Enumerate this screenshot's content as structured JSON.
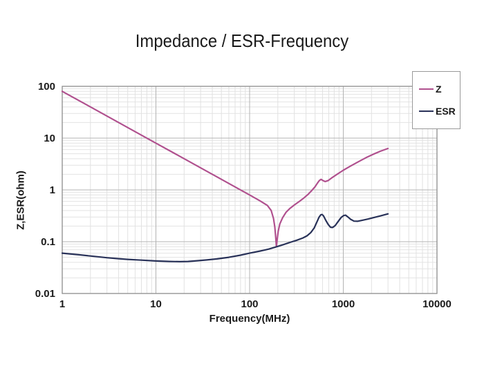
{
  "title": "Impedance / ESR-Frequency",
  "colors": {
    "z_line": "#b0508e",
    "esr_line": "#283158",
    "grid_major": "#b3b3b3",
    "grid_minor": "#e2e2e2",
    "plot_border": "#8c8c8c",
    "text": "#1a1a1a",
    "legend_border": "#999999",
    "background": "#ffffff"
  },
  "chart_data": {
    "type": "line",
    "title": "Impedance / ESR-Frequency",
    "grid": {
      "major": true,
      "minor": true
    },
    "legend_position": "top-right-outside",
    "x_axis": {
      "label": "Frequency(MHz)",
      "scale": "log",
      "min": 1,
      "max": 10000,
      "ticks": [
        "1",
        "10",
        "100",
        "1000",
        "10000"
      ]
    },
    "y_axis": {
      "label": "Z,ESR(ohm)",
      "scale": "log",
      "min": 0.01,
      "max": 100,
      "ticks": [
        "100",
        "10",
        "1",
        "0.1",
        "0.01"
      ]
    },
    "series": [
      {
        "name": "Z",
        "color": "#b0508e",
        "points": [
          [
            1,
            80
          ],
          [
            2,
            40
          ],
          [
            4,
            20
          ],
          [
            7,
            11.4
          ],
          [
            10,
            8
          ],
          [
            20,
            4
          ],
          [
            40,
            2
          ],
          [
            70,
            1.14
          ],
          [
            100,
            0.8
          ],
          [
            130,
            0.61
          ],
          [
            155,
            0.5
          ],
          [
            170,
            0.4
          ],
          [
            180,
            0.28
          ],
          [
            186,
            0.19
          ],
          [
            190,
            0.12
          ],
          [
            193,
            0.082
          ],
          [
            197,
            0.11
          ],
          [
            202,
            0.16
          ],
          [
            210,
            0.22
          ],
          [
            225,
            0.29
          ],
          [
            245,
            0.37
          ],
          [
            270,
            0.44
          ],
          [
            300,
            0.51
          ],
          [
            340,
            0.6
          ],
          [
            380,
            0.7
          ],
          [
            420,
            0.82
          ],
          [
            460,
            0.97
          ],
          [
            500,
            1.15
          ],
          [
            530,
            1.35
          ],
          [
            555,
            1.52
          ],
          [
            580,
            1.6
          ],
          [
            605,
            1.52
          ],
          [
            640,
            1.45
          ],
          [
            690,
            1.52
          ],
          [
            750,
            1.7
          ],
          [
            850,
            1.98
          ],
          [
            1000,
            2.4
          ],
          [
            1200,
            2.9
          ],
          [
            1450,
            3.5
          ],
          [
            1750,
            4.2
          ],
          [
            2100,
            4.9
          ],
          [
            2500,
            5.6
          ],
          [
            3000,
            6.3
          ]
        ]
      },
      {
        "name": "ESR",
        "color": "#283158",
        "points": [
          [
            1,
            0.06
          ],
          [
            1.5,
            0.056
          ],
          [
            2,
            0.053
          ],
          [
            3,
            0.049
          ],
          [
            4,
            0.047
          ],
          [
            5,
            0.0455
          ],
          [
            7,
            0.044
          ],
          [
            10,
            0.0425
          ],
          [
            14,
            0.0415
          ],
          [
            18,
            0.0412
          ],
          [
            22,
            0.0415
          ],
          [
            28,
            0.043
          ],
          [
            35,
            0.0445
          ],
          [
            45,
            0.0465
          ],
          [
            60,
            0.05
          ],
          [
            80,
            0.055
          ],
          [
            100,
            0.06
          ],
          [
            130,
            0.066
          ],
          [
            160,
            0.072
          ],
          [
            190,
            0.079
          ],
          [
            230,
            0.088
          ],
          [
            270,
            0.097
          ],
          [
            320,
            0.107
          ],
          [
            370,
            0.118
          ],
          [
            410,
            0.13
          ],
          [
            450,
            0.15
          ],
          [
            490,
            0.185
          ],
          [
            520,
            0.235
          ],
          [
            550,
            0.295
          ],
          [
            575,
            0.33
          ],
          [
            595,
            0.335
          ],
          [
            615,
            0.315
          ],
          [
            650,
            0.26
          ],
          [
            690,
            0.215
          ],
          [
            730,
            0.19
          ],
          [
            770,
            0.188
          ],
          [
            820,
            0.205
          ],
          [
            880,
            0.245
          ],
          [
            950,
            0.295
          ],
          [
            1010,
            0.32
          ],
          [
            1060,
            0.325
          ],
          [
            1120,
            0.3
          ],
          [
            1200,
            0.27
          ],
          [
            1300,
            0.25
          ],
          [
            1420,
            0.248
          ],
          [
            1600,
            0.26
          ],
          [
            1850,
            0.275
          ],
          [
            2150,
            0.295
          ],
          [
            2500,
            0.315
          ],
          [
            2750,
            0.33
          ],
          [
            3000,
            0.345
          ]
        ]
      }
    ]
  }
}
